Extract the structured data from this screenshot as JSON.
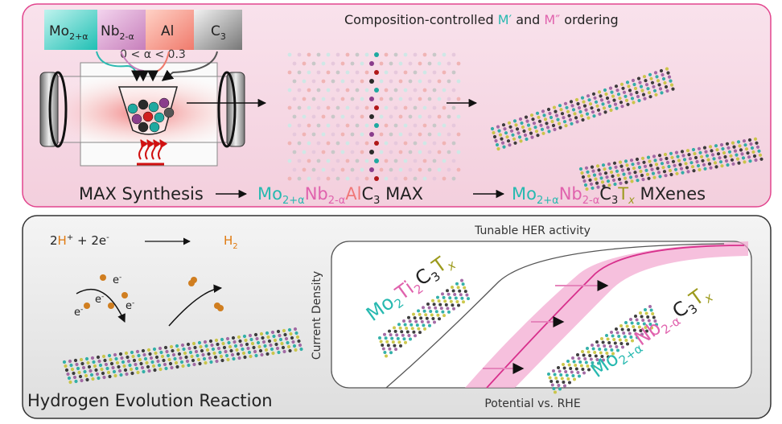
{
  "top_panel": {
    "precursors": [
      {
        "base": "Mo",
        "sub": "2+α"
      },
      {
        "base": "Nb",
        "sub": "2-α"
      },
      {
        "base": "Al"
      },
      {
        "base": "C",
        "sub": "3"
      }
    ],
    "alpha_range": "0 < α < 0.3",
    "ordering_title": [
      "Composition-controlled ",
      "M′",
      " and ",
      "M″",
      " ordering"
    ],
    "synthesis_label": "MAX Synthesis",
    "max_formula": [
      {
        "base": "Mo",
        "sub": "2+α"
      },
      {
        "base": "Nb",
        "sub": "2-α"
      },
      {
        "base": "Al"
      },
      {
        "base": "C",
        "sub": "3"
      }
    ],
    "max_label": "MAX",
    "mxene_formula": [
      {
        "base": "Mo",
        "sub": "2+α"
      },
      {
        "base": "Nb",
        "sub": "2-α"
      },
      {
        "base": "C",
        "sub": "3"
      },
      {
        "base": "T",
        "sub": "x"
      }
    ],
    "mxene_label": "MXenes"
  },
  "bottom_panel": {
    "reactants": [
      {
        "base": "2"
      },
      {
        "base": "H",
        "sup": "+"
      },
      {
        "base": " + 2e",
        "sup": "-"
      }
    ],
    "product": {
      "base": "H",
      "sub": "2"
    },
    "electrons": [
      {
        "base": "e",
        "sup": "-"
      },
      {
        "base": "e",
        "sup": "-"
      },
      {
        "base": "e",
        "sup": "-"
      },
      {
        "base": "e",
        "sup": "-"
      }
    ],
    "title": "Hydrogen Evolution Reaction",
    "plot_title": "Tunable HER activity",
    "y_axis_label": "Current Density",
    "x_axis_label": "Potential vs. RHE",
    "reference_formula": [
      {
        "base": "Mo",
        "sub": "2"
      },
      {
        "base": "Ti",
        "sub": "2"
      },
      {
        "base": "C",
        "sub": "3"
      },
      {
        "base": "T",
        "sub": "x"
      }
    ],
    "tuned_formula": [
      {
        "base": "Mo",
        "sub": "2+α"
      },
      {
        "base": "Nb",
        "sub": "2-α"
      },
      {
        "base": "C",
        "sub": "3"
      },
      {
        "base": "T",
        "sub": "x"
      }
    ]
  }
}
